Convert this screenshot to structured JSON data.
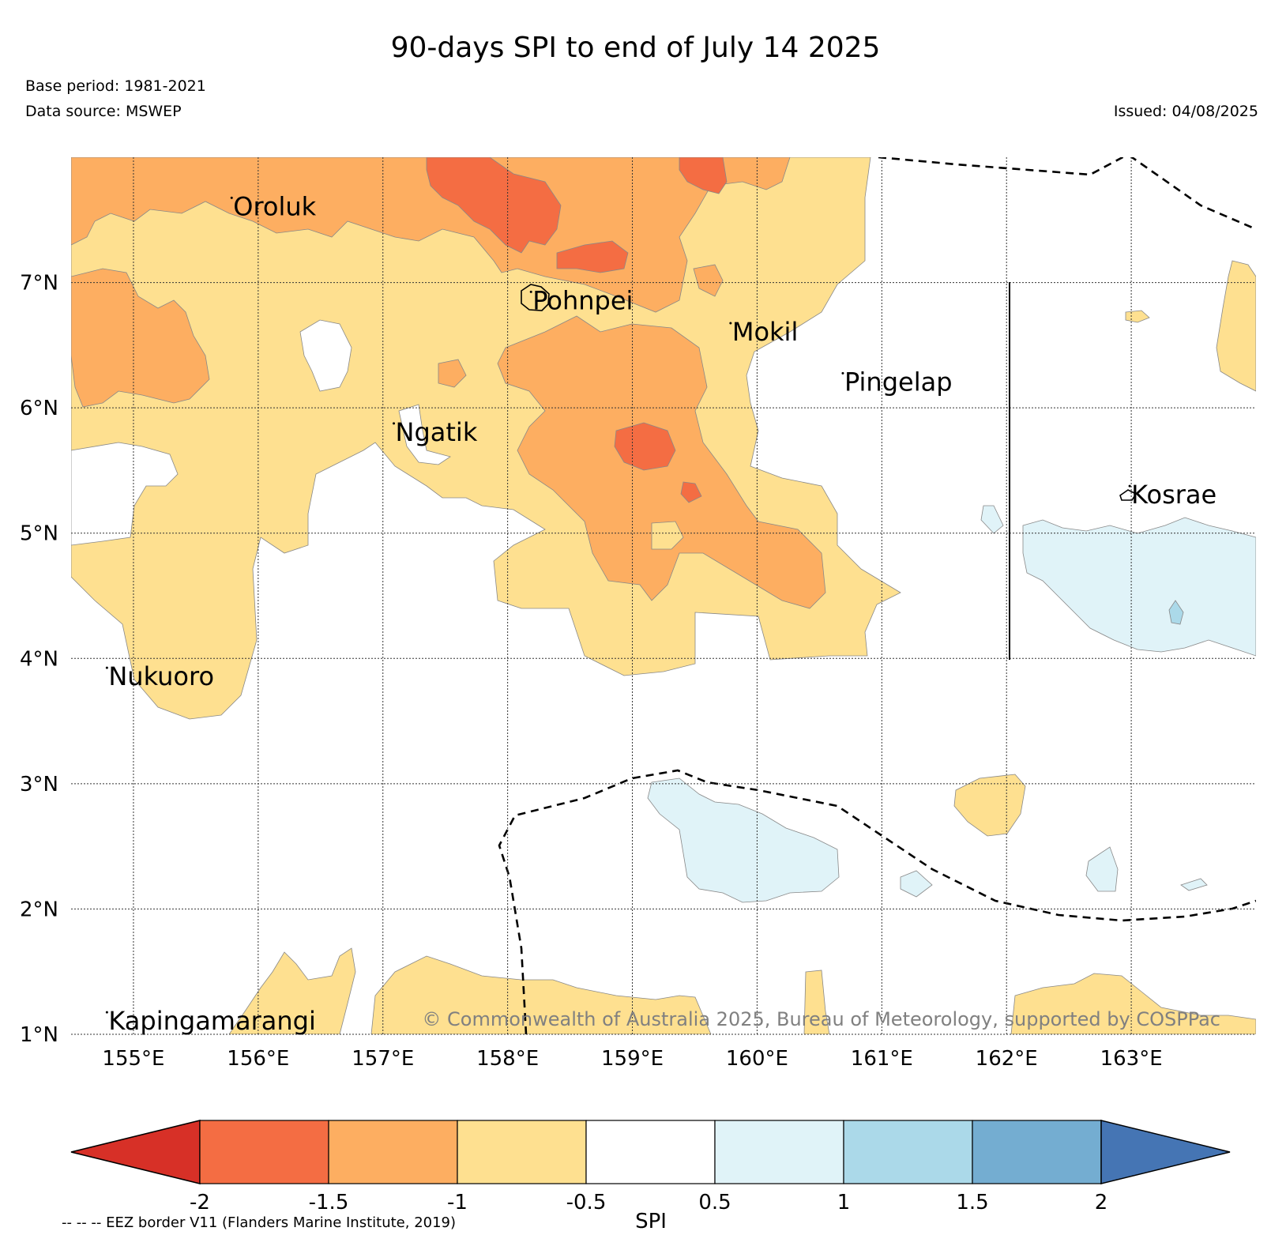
{
  "header": {
    "title": "90-days SPI to end of July 14 2025",
    "base_period": "Base period: 1981-2021",
    "data_source": "Data source: MSWEP",
    "issued": "Issued: 04/08/2025"
  },
  "map": {
    "lon_range": [
      154.5,
      164.0
    ],
    "lat_range": [
      1.0,
      8.0
    ],
    "lon_ticks": [
      155,
      156,
      157,
      158,
      159,
      160,
      161,
      162,
      163
    ],
    "lon_tick_labels": [
      "155°E",
      "156°E",
      "157°E",
      "158°E",
      "159°E",
      "160°E",
      "161°E",
      "162°E",
      "163°E"
    ],
    "lat_ticks": [
      1,
      2,
      3,
      4,
      5,
      6,
      7
    ],
    "lat_tick_labels": [
      "1°N",
      "2°N",
      "3°N",
      "4°N",
      "5°N",
      "6°N",
      "7°N"
    ],
    "grid": true,
    "places": [
      {
        "name": "Oroluk",
        "lon": 155.8,
        "lat": 7.6
      },
      {
        "name": "Pohnpei",
        "lon": 158.2,
        "lat": 6.85
      },
      {
        "name": "Mokil",
        "lon": 159.8,
        "lat": 6.6
      },
      {
        "name": "Pingelap",
        "lon": 160.7,
        "lat": 6.2
      },
      {
        "name": "Ngatik",
        "lon": 157.1,
        "lat": 5.8
      },
      {
        "name": "Kosrae",
        "lon": 163.0,
        "lat": 5.3
      },
      {
        "name": "Nukuoro",
        "lon": 154.8,
        "lat": 3.85
      },
      {
        "name": "Kapingamarangi",
        "lon": 154.8,
        "lat": 1.1
      }
    ],
    "copyright": "© Commonwealth of Australia 2025, Bureau of Meteorology, supported by COSPPac"
  },
  "colorbar": {
    "label": "SPI",
    "tick_labels": [
      "-2",
      "-1.5",
      "-1",
      "-0.5",
      "0.5",
      "1",
      "1.5",
      "2"
    ],
    "colors": [
      "#d73027",
      "#f46d43",
      "#fdae61",
      "#fee090",
      "#ffffff",
      "#e0f3f8",
      "#abd9e9",
      "#74add1",
      "#4575b4"
    ],
    "extend": "both"
  },
  "legend_note": "-- -- -- EEZ border V11 (Flanders Marine Institute, 2019)"
}
